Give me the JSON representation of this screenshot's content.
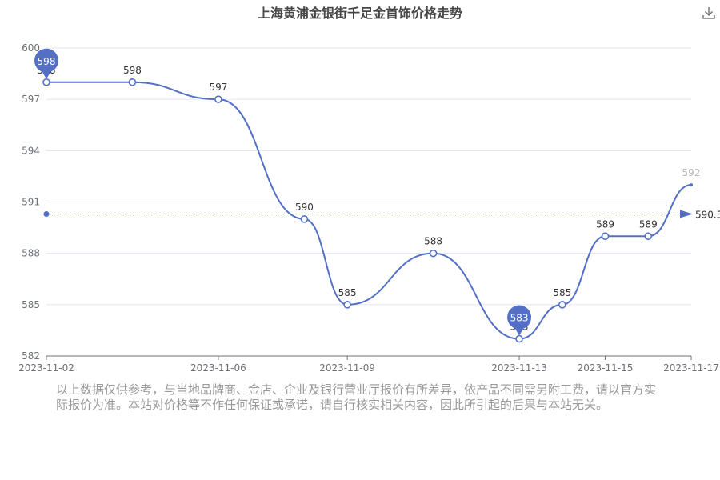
{
  "title": "上海黄浦金银街千足金首饰价格走势",
  "toolbar": {
    "download_icon": "download-icon"
  },
  "colors": {
    "line": "#5470c6",
    "axis": "#6e7079",
    "grid": "#e0e6f1",
    "text": "#333333",
    "muted": "#999999"
  },
  "chart_data": {
    "type": "line",
    "title": "上海黄浦金银街千足金首饰价格走势",
    "x": [
      "2023-11-02",
      "2023-11-04",
      "2023-11-06",
      "2023-11-08",
      "2023-11-09",
      "2023-11-11",
      "2023-11-13",
      "2023-11-14",
      "2023-11-15",
      "2023-11-16",
      "2023-11-17"
    ],
    "x_tick_labels": [
      "2023-11-02",
      "2023-11-06",
      "2023-11-09",
      "2023-11-13",
      "2023-11-15",
      "2023-11-17"
    ],
    "series": [
      {
        "values": [
          598,
          598,
          597,
          590,
          585,
          588,
          583,
          585,
          589,
          589,
          592
        ]
      }
    ],
    "ylim": [
      582,
      600
    ],
    "y_ticks": [
      582,
      585,
      588,
      591,
      594,
      597,
      600
    ],
    "grid": true,
    "mark_points": [
      {
        "label": "598",
        "type": "max",
        "index": 0
      },
      {
        "label": "583",
        "type": "min",
        "index": 6
      }
    ],
    "mark_line": {
      "type": "average",
      "value": 590.3,
      "label": "590.3"
    },
    "xlabel": "",
    "ylabel": ""
  },
  "disclaimer": "以上数据仅供参考，与当地品牌商、金店、企业及银行营业厅报价有所差异，依产品不同需另附工费，请以官方实际报价为准。本站对价格等不作任何保证或承诺，请自行核实相关内容，因此所引起的后果与本站无关。"
}
